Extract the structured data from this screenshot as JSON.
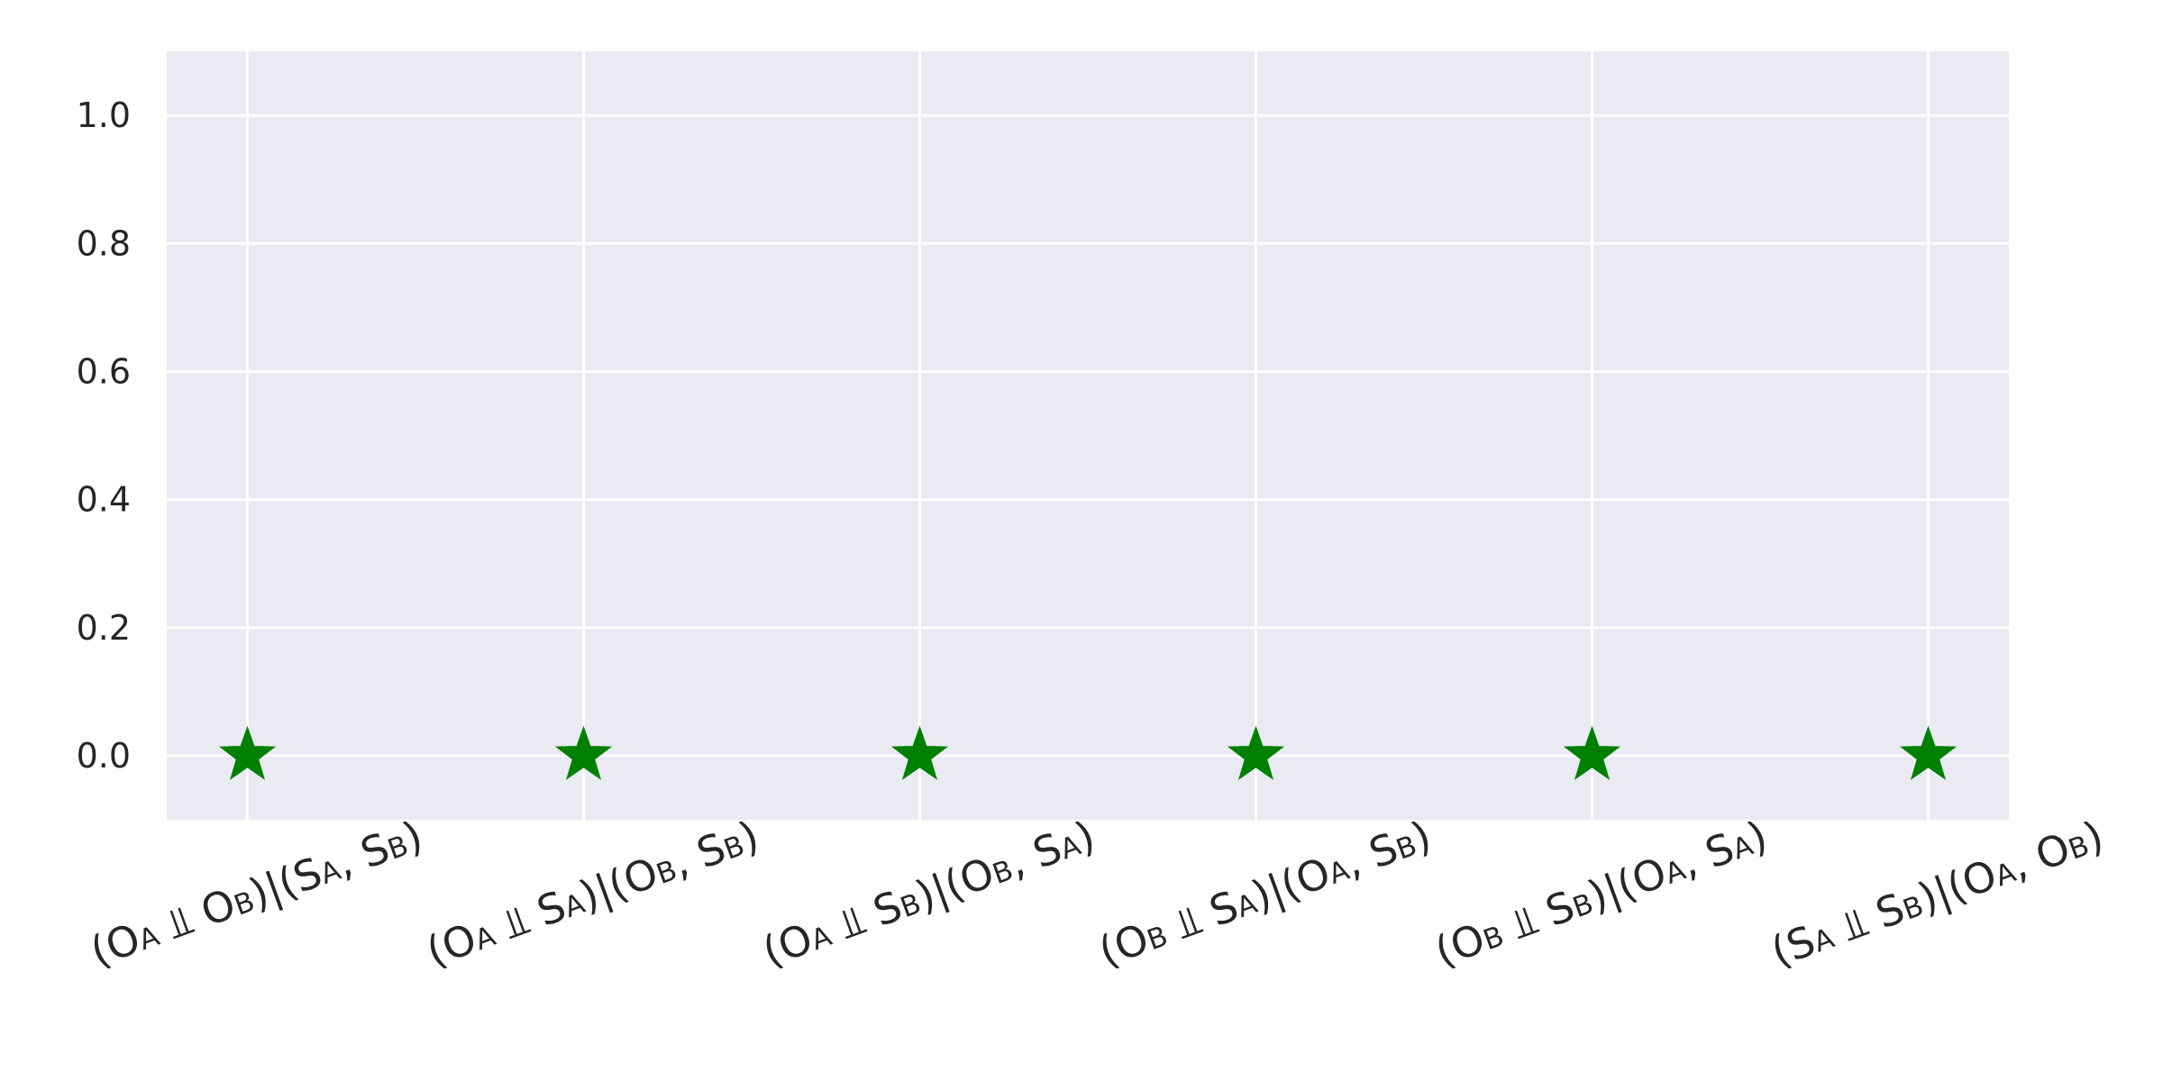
{
  "chart_data": {
    "type": "scatter",
    "title": "",
    "xlabel": "",
    "ylabel": "",
    "categories": [
      [
        {
          "t": "(O"
        },
        {
          "t": "A",
          "sub": true
        },
        {
          "t": " ⫫ O"
        },
        {
          "t": "B",
          "sub": true
        },
        {
          "t": ")|(S"
        },
        {
          "t": "A",
          "sub": true
        },
        {
          "t": ", S"
        },
        {
          "t": "B",
          "sub": true
        },
        {
          "t": ")"
        }
      ],
      [
        {
          "t": "(O"
        },
        {
          "t": "A",
          "sub": true
        },
        {
          "t": " ⫫ S"
        },
        {
          "t": "A",
          "sub": true
        },
        {
          "t": ")|(O"
        },
        {
          "t": "B",
          "sub": true
        },
        {
          "t": ", S"
        },
        {
          "t": "B",
          "sub": true
        },
        {
          "t": ")"
        }
      ],
      [
        {
          "t": "(O"
        },
        {
          "t": "A",
          "sub": true
        },
        {
          "t": " ⫫ S"
        },
        {
          "t": "B",
          "sub": true
        },
        {
          "t": ")|(O"
        },
        {
          "t": "B",
          "sub": true
        },
        {
          "t": ", S"
        },
        {
          "t": "A",
          "sub": true
        },
        {
          "t": ")"
        }
      ],
      [
        {
          "t": "(O"
        },
        {
          "t": "B",
          "sub": true
        },
        {
          "t": " ⫫ S"
        },
        {
          "t": "A",
          "sub": true
        },
        {
          "t": ")|(O"
        },
        {
          "t": "A",
          "sub": true
        },
        {
          "t": ", S"
        },
        {
          "t": "B",
          "sub": true
        },
        {
          "t": ")"
        }
      ],
      [
        {
          "t": "(O"
        },
        {
          "t": "B",
          "sub": true
        },
        {
          "t": " ⫫ S"
        },
        {
          "t": "B",
          "sub": true
        },
        {
          "t": ")|(O"
        },
        {
          "t": "A",
          "sub": true
        },
        {
          "t": ", S"
        },
        {
          "t": "A",
          "sub": true
        },
        {
          "t": ")"
        }
      ],
      [
        {
          "t": "(S"
        },
        {
          "t": "A",
          "sub": true
        },
        {
          "t": " ⫫ S"
        },
        {
          "t": "B",
          "sub": true
        },
        {
          "t": ")|(O"
        },
        {
          "t": "A",
          "sub": true
        },
        {
          "t": ", O"
        },
        {
          "t": "B",
          "sub": true
        },
        {
          "t": ")"
        }
      ]
    ],
    "values": [
      0.0,
      0.0,
      0.0,
      0.0,
      0.0,
      0.0
    ],
    "ylim": [
      -0.1,
      1.1
    ],
    "yticks": [
      "0.0",
      "0.2",
      "0.4",
      "0.6",
      "0.8",
      "1.0"
    ],
    "grid": true,
    "marker": "star",
    "colors": {
      "background": "#eaeaf2",
      "grid": "#ffffff",
      "marker": "#008000",
      "text": "#262626"
    }
  }
}
